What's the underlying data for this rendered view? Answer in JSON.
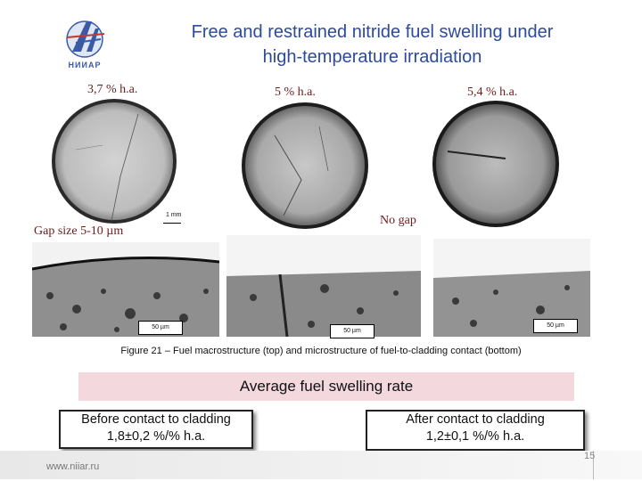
{
  "header": {
    "title_line1": "Free and restrained nitride fuel swelling under",
    "title_line2": "high-temperature irradiation",
    "logo_text": "НИИАР"
  },
  "macro_labels": [
    "3,7 % h.a.",
    "5 % h.a.",
    "5,4 % h.a."
  ],
  "scale_macro": "1 mm",
  "gap_label": "Gap size 5-10 µm",
  "no_gap_label": "No gap",
  "scale_micro": [
    "50 µm",
    "50 µm",
    "50 µm"
  ],
  "figure_caption": "Figure 21 – Fuel macrostructure (top) and microstructure of fuel-to-cladding contact (bottom)",
  "rate_heading": "Average fuel swelling rate",
  "before_box": {
    "line1": "Before contact to cladding",
    "line2": "1,8±0,2  %/% h.a."
  },
  "after_box": {
    "line1": "After contact to cladding",
    "line2": "1,2±0,1 %/% h.a."
  },
  "footer": {
    "url": "www.niiar.ru",
    "page": "15"
  },
  "colors": {
    "title": "#2d4a9b",
    "label": "#6b1c1c",
    "band": "#f3d9de"
  }
}
